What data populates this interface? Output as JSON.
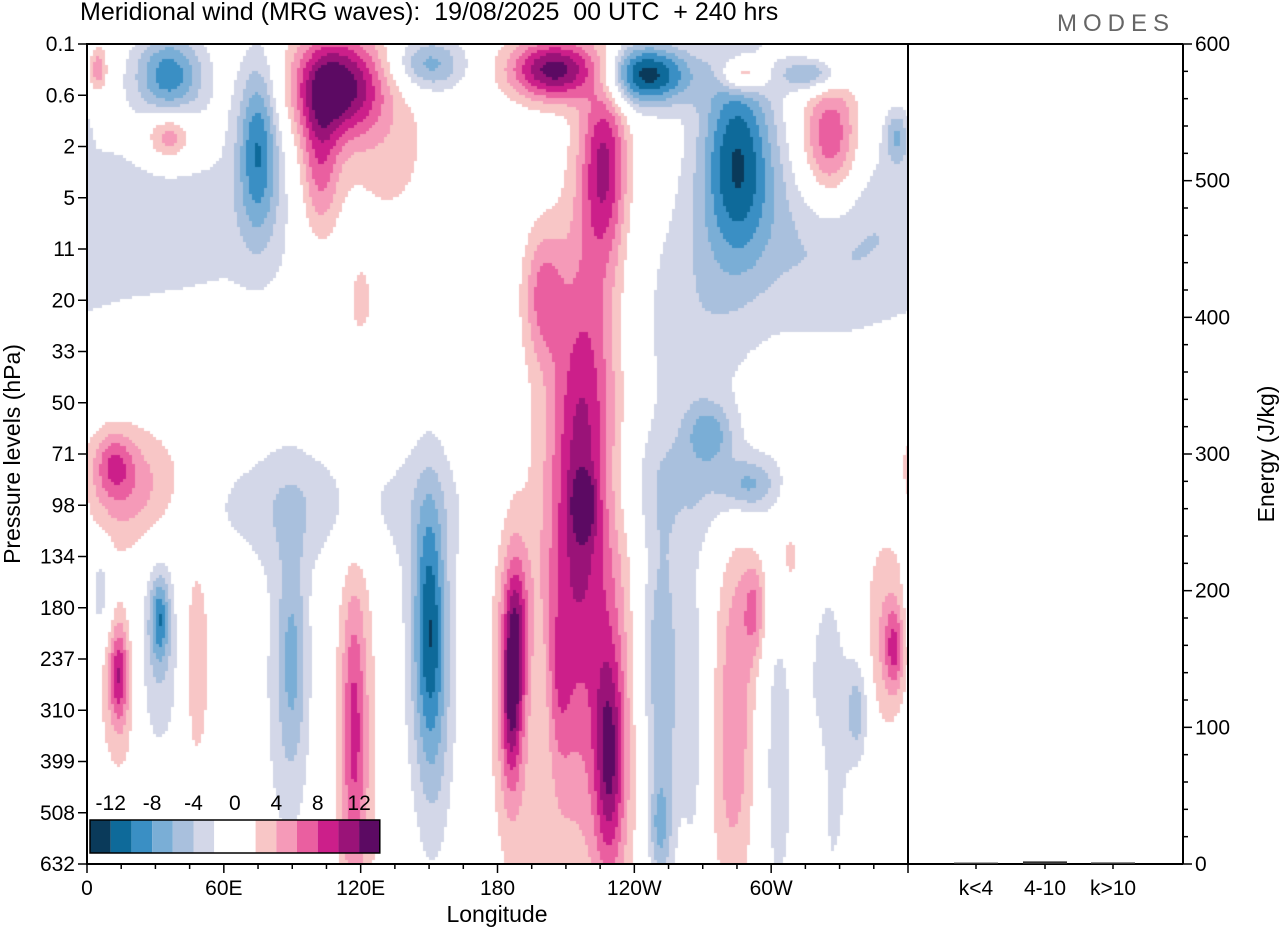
{
  "header": {
    "title": "Meridional wind (MRG waves):  19/08/2025  00 UTC  + 240 hrs",
    "brand": "MODES"
  },
  "chart_data": [
    {
      "type": "heatmap",
      "title": "Meridional wind (MRG waves)",
      "xlabel": "Longitude",
      "ylabel": "Pressure levels (hPa)",
      "x_range_deg_east": [
        0,
        360
      ],
      "x_ticks": [
        {
          "deg": 0,
          "label": "0"
        },
        {
          "deg": 60,
          "label": "60E"
        },
        {
          "deg": 120,
          "label": "120E"
        },
        {
          "deg": 180,
          "label": "180"
        },
        {
          "deg": 240,
          "label": "120W"
        },
        {
          "deg": 300,
          "label": "60W"
        }
      ],
      "y_levels": [
        "0.1",
        "0.6",
        "2",
        "5",
        "11",
        "20",
        "33",
        "50",
        "71",
        "98",
        "134",
        "180",
        "237",
        "310",
        "399",
        "508",
        "632"
      ],
      "colorbar": {
        "labels": [
          "-12",
          "-8",
          "-4",
          "0",
          "4",
          "8",
          "12"
        ],
        "colors": [
          "#0a3a5a",
          "#0e6a9a",
          "#3a8fc4",
          "#7aaed6",
          "#a9c0dd",
          "#d3d7e8",
          "#ffffff",
          "#ffffff",
          "#f8c6c6",
          "#f59ab8",
          "#ea5fa0",
          "#cc1f8a",
          "#9a1378",
          "#5c0a63"
        ],
        "bounds": [
          -14,
          -12,
          -10,
          -8,
          -6,
          -4,
          -2,
          0,
          2,
          4,
          6,
          8,
          10,
          12,
          14
        ]
      },
      "blobs": [
        {
          "lon": 5,
          "lev": 0.5,
          "rlon": 4,
          "rlev": 0.45,
          "v": 6
        },
        {
          "lon": 36,
          "lev": 0.6,
          "rlon": 15,
          "rlev": 0.8,
          "v": -9
        },
        {
          "lon": 75,
          "lev": 2.0,
          "rlon": 9,
          "rlev": 1.7,
          "v": -9
        },
        {
          "lon": 36,
          "lev": 1.8,
          "rlon": 11,
          "rlev": 0.5,
          "v": 7
        },
        {
          "lon": 110,
          "lev": 0.8,
          "rlon": 20,
          "rlev": 1.0,
          "v": 13
        },
        {
          "lon": 102,
          "lev": 2.3,
          "rlon": 9,
          "rlev": 1.6,
          "v": 7
        },
        {
          "lon": 150,
          "lev": 0.4,
          "rlon": 16,
          "rlev": 0.55,
          "v": -7
        },
        {
          "lon": 205,
          "lev": 0.5,
          "rlon": 20,
          "rlev": 0.6,
          "v": 13
        },
        {
          "lon": 245,
          "lev": 0.6,
          "rlon": 20,
          "rlev": 0.6,
          "v": -13
        },
        {
          "lon": 288,
          "lev": 0.6,
          "rlon": 10,
          "rlev": 0.35,
          "v": 8
        },
        {
          "lon": 318,
          "lev": 0.6,
          "rlon": 14,
          "rlev": 0.35,
          "v": -7
        },
        {
          "lon": 227,
          "lev": 2.3,
          "rlon": 10,
          "rlev": 1.8,
          "v": 9
        },
        {
          "lon": 285,
          "lev": 2.2,
          "rlon": 16,
          "rlev": 2.0,
          "v": -11
        },
        {
          "lon": 326,
          "lev": 1.9,
          "rlon": 13,
          "rlev": 1.3,
          "v": 9
        },
        {
          "lon": 355,
          "lev": 1.8,
          "rlon": 5,
          "rlev": 0.5,
          "v": -5
        },
        {
          "lon": 30,
          "lev": 3.5,
          "rlon": 80,
          "rlev": 2.0,
          "v": -3
        },
        {
          "lon": 320,
          "lev": 4.0,
          "rlon": 40,
          "rlev": 2.0,
          "v": -3
        },
        {
          "lon": 130,
          "lev": 2.3,
          "rlon": 25,
          "rlev": 1.8,
          "v": 3
        },
        {
          "lon": 200,
          "lev": 4.9,
          "rlon": 9,
          "rlev": 1.3,
          "v": 6
        },
        {
          "lon": 222,
          "lev": 6.0,
          "rlon": 14,
          "rlev": 4.0,
          "v": 4
        },
        {
          "lon": 218,
          "lev": 10.0,
          "rlon": 14,
          "rlev": 5.0,
          "v": 4
        },
        {
          "lon": 205,
          "lev": 12.0,
          "rlon": 14,
          "rlev": 5.5,
          "v": 4
        },
        {
          "lon": 265,
          "lev": 5.5,
          "rlon": 25,
          "rlev": 2.5,
          "v": -3
        },
        {
          "lon": 273,
          "lev": 7.6,
          "rlon": 10,
          "rlev": 0.6,
          "v": -5
        },
        {
          "lon": 120,
          "lev": 5.0,
          "rlon": 6,
          "rlev": 0.8,
          "v": 3
        },
        {
          "lon": 20,
          "lev": 8.7,
          "rlon": 25,
          "rlev": 1.2,
          "v": 6
        },
        {
          "lon": 12,
          "lev": 8.2,
          "rlon": 8,
          "rlev": 0.6,
          "v": 5
        },
        {
          "lon": 95,
          "lev": 9.0,
          "rlon": 70,
          "rlev": 1.2,
          "v": -3
        },
        {
          "lon": 215,
          "lev": 8.5,
          "rlon": 12,
          "rlev": 3.5,
          "v": 4
        },
        {
          "lon": 218,
          "lev": 9.0,
          "rlon": 5,
          "rlev": 0.6,
          "v": 6
        },
        {
          "lon": 265,
          "lev": 8.6,
          "rlon": 35,
          "rlev": 1.2,
          "v": -3
        },
        {
          "lon": 290,
          "lev": 8.6,
          "rlon": 12,
          "rlev": 0.5,
          "v": -5
        },
        {
          "lon": 6,
          "lev": 10.7,
          "rlon": 5,
          "rlev": 1.0,
          "v": -4
        },
        {
          "lon": 30,
          "lev": 12.0,
          "rlon": 12,
          "rlev": 2.0,
          "v": -4
        },
        {
          "lon": 32,
          "lev": 11.2,
          "rlon": 4,
          "rlev": 0.8,
          "v": -7
        },
        {
          "lon": 15,
          "lev": 12.5,
          "rlon": 10,
          "rlev": 2.0,
          "v": 4
        },
        {
          "lon": 14,
          "lev": 12.3,
          "rlon": 4,
          "rlev": 0.9,
          "v": 7
        },
        {
          "lon": 48,
          "lev": 12.0,
          "rlon": 6,
          "rlev": 2.2,
          "v": 4
        },
        {
          "lon": 88,
          "lev": 12.5,
          "rlon": 12,
          "rlev": 4.0,
          "v": -3
        },
        {
          "lon": 90,
          "lev": 12.0,
          "rlon": 6,
          "rlev": 2.0,
          "v": -4
        },
        {
          "lon": 118,
          "lev": 14.0,
          "rlon": 10,
          "rlev": 5.0,
          "v": 4
        },
        {
          "lon": 117,
          "lev": 13.3,
          "rlon": 5,
          "rlev": 2.5,
          "v": 5
        },
        {
          "lon": 150,
          "lev": 11.5,
          "rlon": 12,
          "rlev": 3.5,
          "v": -4
        },
        {
          "lon": 150,
          "lev": 11.2,
          "rlon": 6,
          "rlev": 2.2,
          "v": -6
        },
        {
          "lon": 152,
          "lev": 13.0,
          "rlon": 8,
          "rlev": 3.0,
          "v": -3
        },
        {
          "lon": 186,
          "lev": 12.5,
          "rlon": 9,
          "rlev": 3.5,
          "v": 5
        },
        {
          "lon": 188,
          "lev": 11.5,
          "rlon": 5,
          "rlev": 1.5,
          "v": 7
        },
        {
          "lon": 186,
          "lev": 13.0,
          "rlon": 4,
          "rlev": 1.5,
          "v": 6
        },
        {
          "lon": 200,
          "lev": 12.8,
          "rlon": 6,
          "rlev": 2.0,
          "v": -3
        },
        {
          "lon": 206,
          "lev": 12.5,
          "rlon": 6,
          "rlev": 1.5,
          "v": 3
        },
        {
          "lon": 230,
          "lev": 13.5,
          "rlon": 12,
          "rlev": 4.0,
          "v": 5
        },
        {
          "lon": 229,
          "lev": 14.0,
          "rlon": 6,
          "rlev": 2.0,
          "v": 7
        },
        {
          "lon": 248,
          "lev": 12.0,
          "rlon": 8,
          "rlev": 2.5,
          "v": -3
        },
        {
          "lon": 254,
          "lev": 12.5,
          "rlon": 7,
          "rlev": 3.5,
          "v": -4
        },
        {
          "lon": 251,
          "lev": 15.3,
          "rlon": 5,
          "rlev": 1.0,
          "v": -5
        },
        {
          "lon": 266,
          "lev": 13.0,
          "rlon": 6,
          "rlev": 3.5,
          "v": -3
        },
        {
          "lon": 285,
          "lev": 11.5,
          "rlon": 9,
          "rlev": 2.5,
          "v": 4
        },
        {
          "lon": 293,
          "lev": 11.0,
          "rlon": 5,
          "rlev": 1.0,
          "v": 5
        },
        {
          "lon": 283,
          "lev": 14.5,
          "rlon": 10,
          "rlev": 2.5,
          "v": 4
        },
        {
          "lon": 303,
          "lev": 14.0,
          "rlon": 8,
          "rlev": 3.5,
          "v": -3
        },
        {
          "lon": 308,
          "lev": 10.0,
          "rlon": 7,
          "rlev": 1.0,
          "v": 3
        },
        {
          "lon": 325,
          "lev": 13.5,
          "rlon": 9,
          "rlev": 3.0,
          "v": -4
        },
        {
          "lon": 338,
          "lev": 13.0,
          "rlon": 5,
          "rlev": 1.0,
          "v": -5
        },
        {
          "lon": 320,
          "lev": 14.5,
          "rlon": 5,
          "rlev": 1.2,
          "v": 4
        },
        {
          "lon": 350,
          "lev": 11.5,
          "rlon": 9,
          "rlev": 2.0,
          "v": 4
        },
        {
          "lon": 354,
          "lev": 11.8,
          "rlon": 4,
          "rlev": 0.8,
          "v": 6
        },
        {
          "lon": 352,
          "lev": 9.0,
          "rlon": 8,
          "rlev": 0.6,
          "v": -3
        }
      ]
    },
    {
      "type": "bar",
      "ylabel": "Energy (J/kg)",
      "ylim": [
        0,
        600
      ],
      "y_ticks": [
        "0",
        "100",
        "200",
        "300",
        "400",
        "500",
        "600"
      ],
      "categories": [
        "k<4",
        "4-10",
        "k>10"
      ],
      "values": [
        0.3,
        1.2,
        0.4
      ]
    }
  ]
}
